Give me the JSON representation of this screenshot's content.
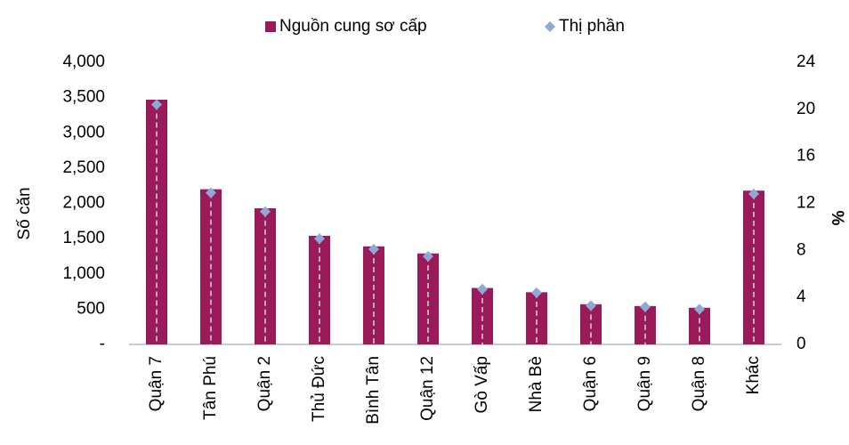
{
  "chart_data": {
    "type": "bar",
    "categories": [
      "Quận 7",
      "Tân Phú",
      "Quận 2",
      "Thủ Đức",
      "Bình Tân",
      "Quận 12",
      "Gò Vấp",
      "Nhà Bè",
      "Quận 6",
      "Quận 9",
      "Quận 8",
      "Khác"
    ],
    "series": [
      {
        "name": "Nguồn cung sơ cấp",
        "color": "#9b1b5a",
        "values": [
          3470,
          2200,
          1930,
          1540,
          1390,
          1290,
          800,
          740,
          570,
          545,
          520,
          2180
        ]
      },
      {
        "name": "Thị phần",
        "color": "#8fa8d8",
        "axis": "y2",
        "values": [
          20.4,
          12.9,
          11.3,
          9.0,
          8.1,
          7.5,
          4.7,
          4.4,
          3.3,
          3.2,
          3.0,
          12.8
        ]
      }
    ],
    "ylabel": "Số căn",
    "y2label": "%",
    "ylim": [
      0,
      4000
    ],
    "yticks": [
      {
        "value": 0,
        "label": "-"
      },
      500,
      {
        "value": 1000,
        "label": "1,000"
      },
      {
        "value": 1500,
        "label": "1,500"
      },
      {
        "value": 2000,
        "label": "2,000"
      },
      {
        "value": 2500,
        "label": "2,500"
      },
      {
        "value": 3000,
        "label": "3,000"
      },
      {
        "value": 3500,
        "label": "3,500"
      },
      {
        "value": 4000,
        "label": "4,000"
      }
    ],
    "y2lim": [
      0,
      24
    ],
    "y2ticks": [
      0,
      4,
      8,
      12,
      16,
      20,
      24
    ],
    "grid": false,
    "legend": "top"
  }
}
